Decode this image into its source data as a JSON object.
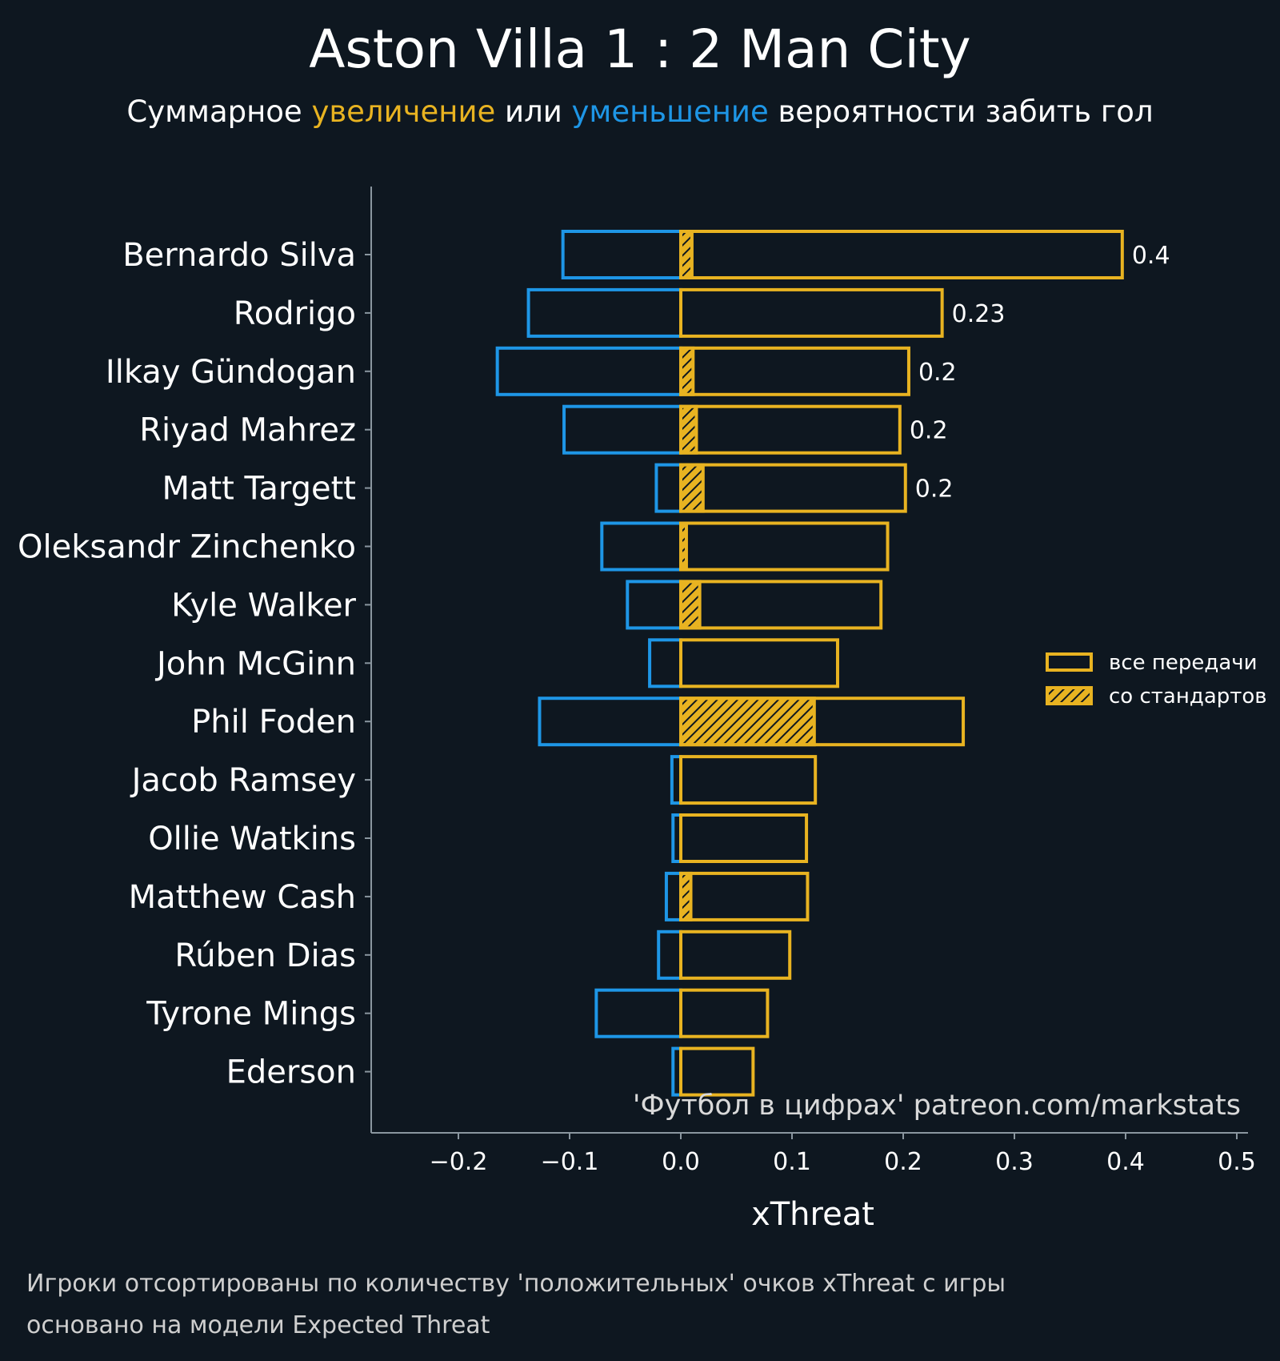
{
  "colors": {
    "background": "#0e1720",
    "positive": "#e8b321",
    "negative": "#1e96e6",
    "axis": "#8a969f",
    "text": "#ffffff"
  },
  "header": {
    "title": "Aston Villa 1 : 2 Man City",
    "subtitle_part1": "Суммарное ",
    "subtitle_positive": "увеличение",
    "subtitle_part2": " или ",
    "subtitle_negative": "уменьшение",
    "subtitle_part3": " вероятности забить гол"
  },
  "legend": {
    "all_passes": "все передачи",
    "set_pieces": "со стандартов"
  },
  "credit": "'Футбол в цифрах' patreon.com/markstats",
  "footnote": {
    "line1": "Игроки отсортированы по количеству 'положительных' очков xThreat с игры",
    "line2": "основано на модели Expected Threat"
  },
  "chart_data": {
    "type": "bar",
    "orientation": "horizontal",
    "xlabel": "xThreat",
    "xlim": [
      -0.28,
      0.51
    ],
    "xticks": [
      -0.2,
      -0.1,
      0.0,
      0.1,
      0.2,
      0.3,
      0.4,
      0.5
    ],
    "xtick_labels": [
      "−0.2",
      "−0.1",
      "0.0",
      "0.1",
      "0.2",
      "0.3",
      "0.4",
      "0.5"
    ],
    "categories": [
      "Bernardo Silva",
      "Rodrigo",
      "Ilkay Gündogan",
      "Riyad Mahrez",
      "Matt Targett",
      "Oleksandr Zinchenko",
      "Kyle Walker",
      "John McGinn",
      "Phil Foden",
      "Jacob Ramsey",
      "Ollie Watkins",
      "Matthew Cash",
      "Rúben Dias",
      "Tyrone Mings",
      "Ederson"
    ],
    "series": [
      {
        "name": "positive (все передачи)",
        "values": [
          0.397,
          0.235,
          0.205,
          0.197,
          0.202,
          0.186,
          0.18,
          0.141,
          0.254,
          0.121,
          0.113,
          0.114,
          0.098,
          0.078,
          0.065
        ]
      },
      {
        "name": "negative (все передачи)",
        "values": [
          -0.106,
          -0.137,
          -0.165,
          -0.105,
          -0.022,
          -0.071,
          -0.048,
          -0.028,
          -0.127,
          -0.008,
          -0.007,
          -0.013,
          -0.02,
          -0.076,
          -0.007
        ]
      },
      {
        "name": "со стандартов",
        "values": [
          0.01,
          0.0,
          0.011,
          0.014,
          0.02,
          0.005,
          0.017,
          0.0,
          0.12,
          0.0,
          0.0,
          0.009,
          0.0,
          0.0,
          0.0
        ]
      }
    ],
    "data_labels": [
      "0.4",
      "0.23",
      "0.2",
      "0.2",
      "0.2",
      "",
      "",
      "",
      "",
      "",
      "",
      "",
      "",
      "",
      ""
    ]
  }
}
